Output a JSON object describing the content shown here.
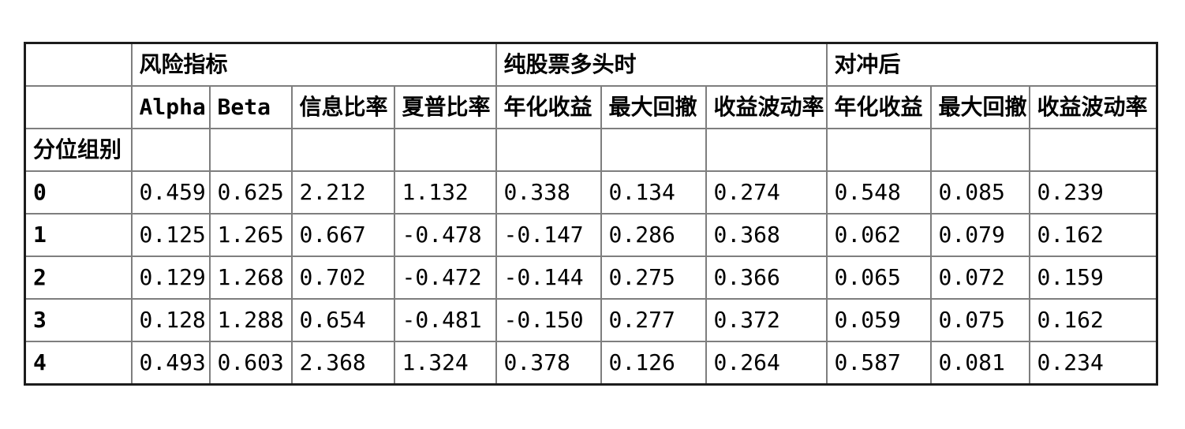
{
  "colors": {
    "background": "#ffffff",
    "text": "#000000",
    "inner_grid": "#7e7e7e",
    "outer_border": "#1c1c1c"
  },
  "chart_data": {
    "type": "table",
    "title": "",
    "index_name": "分位组别",
    "col_groups": [
      {
        "label": "风险指标",
        "span": 4
      },
      {
        "label": "纯股票多头时",
        "span": 3
      },
      {
        "label": "对冲后",
        "span": 3
      }
    ],
    "columns": [
      "Alpha",
      "Beta",
      "信息比率",
      "夏普比率",
      "年化收益",
      "最大回撤",
      "收益波动率",
      "年化收益",
      "最大回撤",
      "收益波动率"
    ],
    "rows": [
      {
        "index": "0",
        "values": [
          "0.459",
          "0.625",
          "2.212",
          "1.132",
          "0.338",
          "0.134",
          "0.274",
          "0.548",
          "0.085",
          "0.239"
        ]
      },
      {
        "index": "1",
        "values": [
          "0.125",
          "1.265",
          "0.667",
          "-0.478",
          "-0.147",
          "0.286",
          "0.368",
          "0.062",
          "0.079",
          "0.162"
        ]
      },
      {
        "index": "2",
        "values": [
          "0.129",
          "1.268",
          "0.702",
          "-0.472",
          "-0.144",
          "0.275",
          "0.366",
          "0.065",
          "0.072",
          "0.159"
        ]
      },
      {
        "index": "3",
        "values": [
          "0.128",
          "1.288",
          "0.654",
          "-0.481",
          "-0.150",
          "0.277",
          "0.372",
          "0.059",
          "0.075",
          "0.162"
        ]
      },
      {
        "index": "4",
        "values": [
          "0.493",
          "0.603",
          "2.368",
          "1.324",
          "0.378",
          "0.126",
          "0.264",
          "0.587",
          "0.081",
          "0.234"
        ]
      }
    ]
  }
}
